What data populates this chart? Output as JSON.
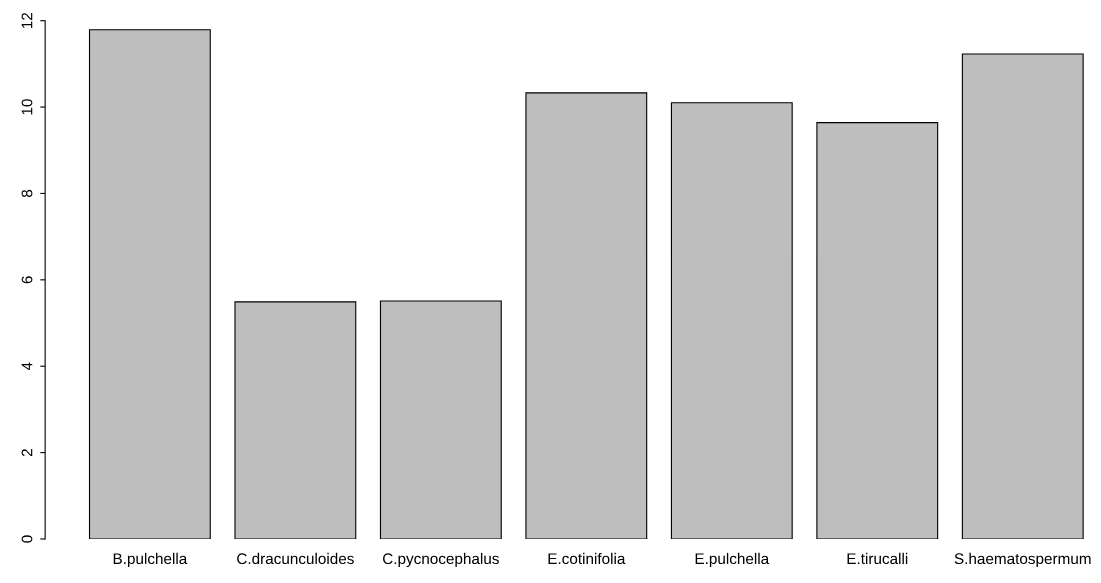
{
  "chart_data": {
    "type": "bar",
    "categories": [
      "B.pulchella",
      "C.dracunculoides",
      "C.pycnocephalus",
      "E.cotinifolia",
      "E.pulchella",
      "E.tirucalli",
      "S.haematospermum"
    ],
    "values": [
      11.79,
      5.49,
      5.51,
      10.33,
      10.1,
      9.64,
      11.23
    ],
    "color": "#bebebe",
    "ylim": [
      0,
      12
    ],
    "yticks": [
      0,
      2,
      4,
      6,
      8,
      10,
      12
    ],
    "grid": false
  }
}
